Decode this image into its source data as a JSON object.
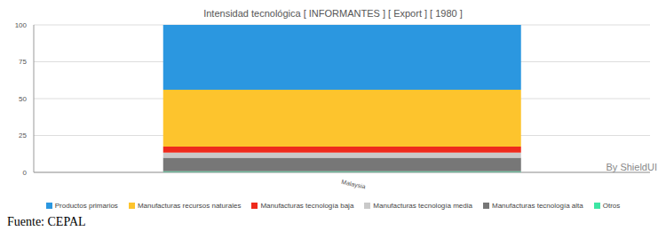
{
  "chart_data": {
    "type": "bar",
    "stacked": true,
    "title": "Intensidad tecnológica [ INFORMANTES ] [ Export ] [ 1980 ]",
    "categories": [
      "Malaysia"
    ],
    "series": [
      {
        "name": "Productos primarios",
        "color": "#2b97e0",
        "values": [
          44.0
        ]
      },
      {
        "name": "Manufacturas recursos naturales",
        "color": "#fdc42d",
        "values": [
          38.6
        ]
      },
      {
        "name": "Manufacturas tecnología baja",
        "color": "#ee2a1c",
        "values": [
          4.0
        ]
      },
      {
        "name": "Manufacturas tecnología media",
        "color": "#c9c9c9",
        "values": [
          3.4
        ]
      },
      {
        "name": "Manufacturas tecnología alta",
        "color": "#777777",
        "values": [
          9.2
        ]
      },
      {
        "name": "Otros",
        "color": "#3de6a4",
        "values": [
          0.8
        ]
      }
    ],
    "ylim": [
      0,
      100
    ],
    "yticks": [
      0,
      25,
      50,
      75,
      100
    ],
    "grid": true,
    "legend": "bottom",
    "annotations": [
      "By ShieldUI"
    ],
    "source": "Fuente: CEPAL"
  }
}
